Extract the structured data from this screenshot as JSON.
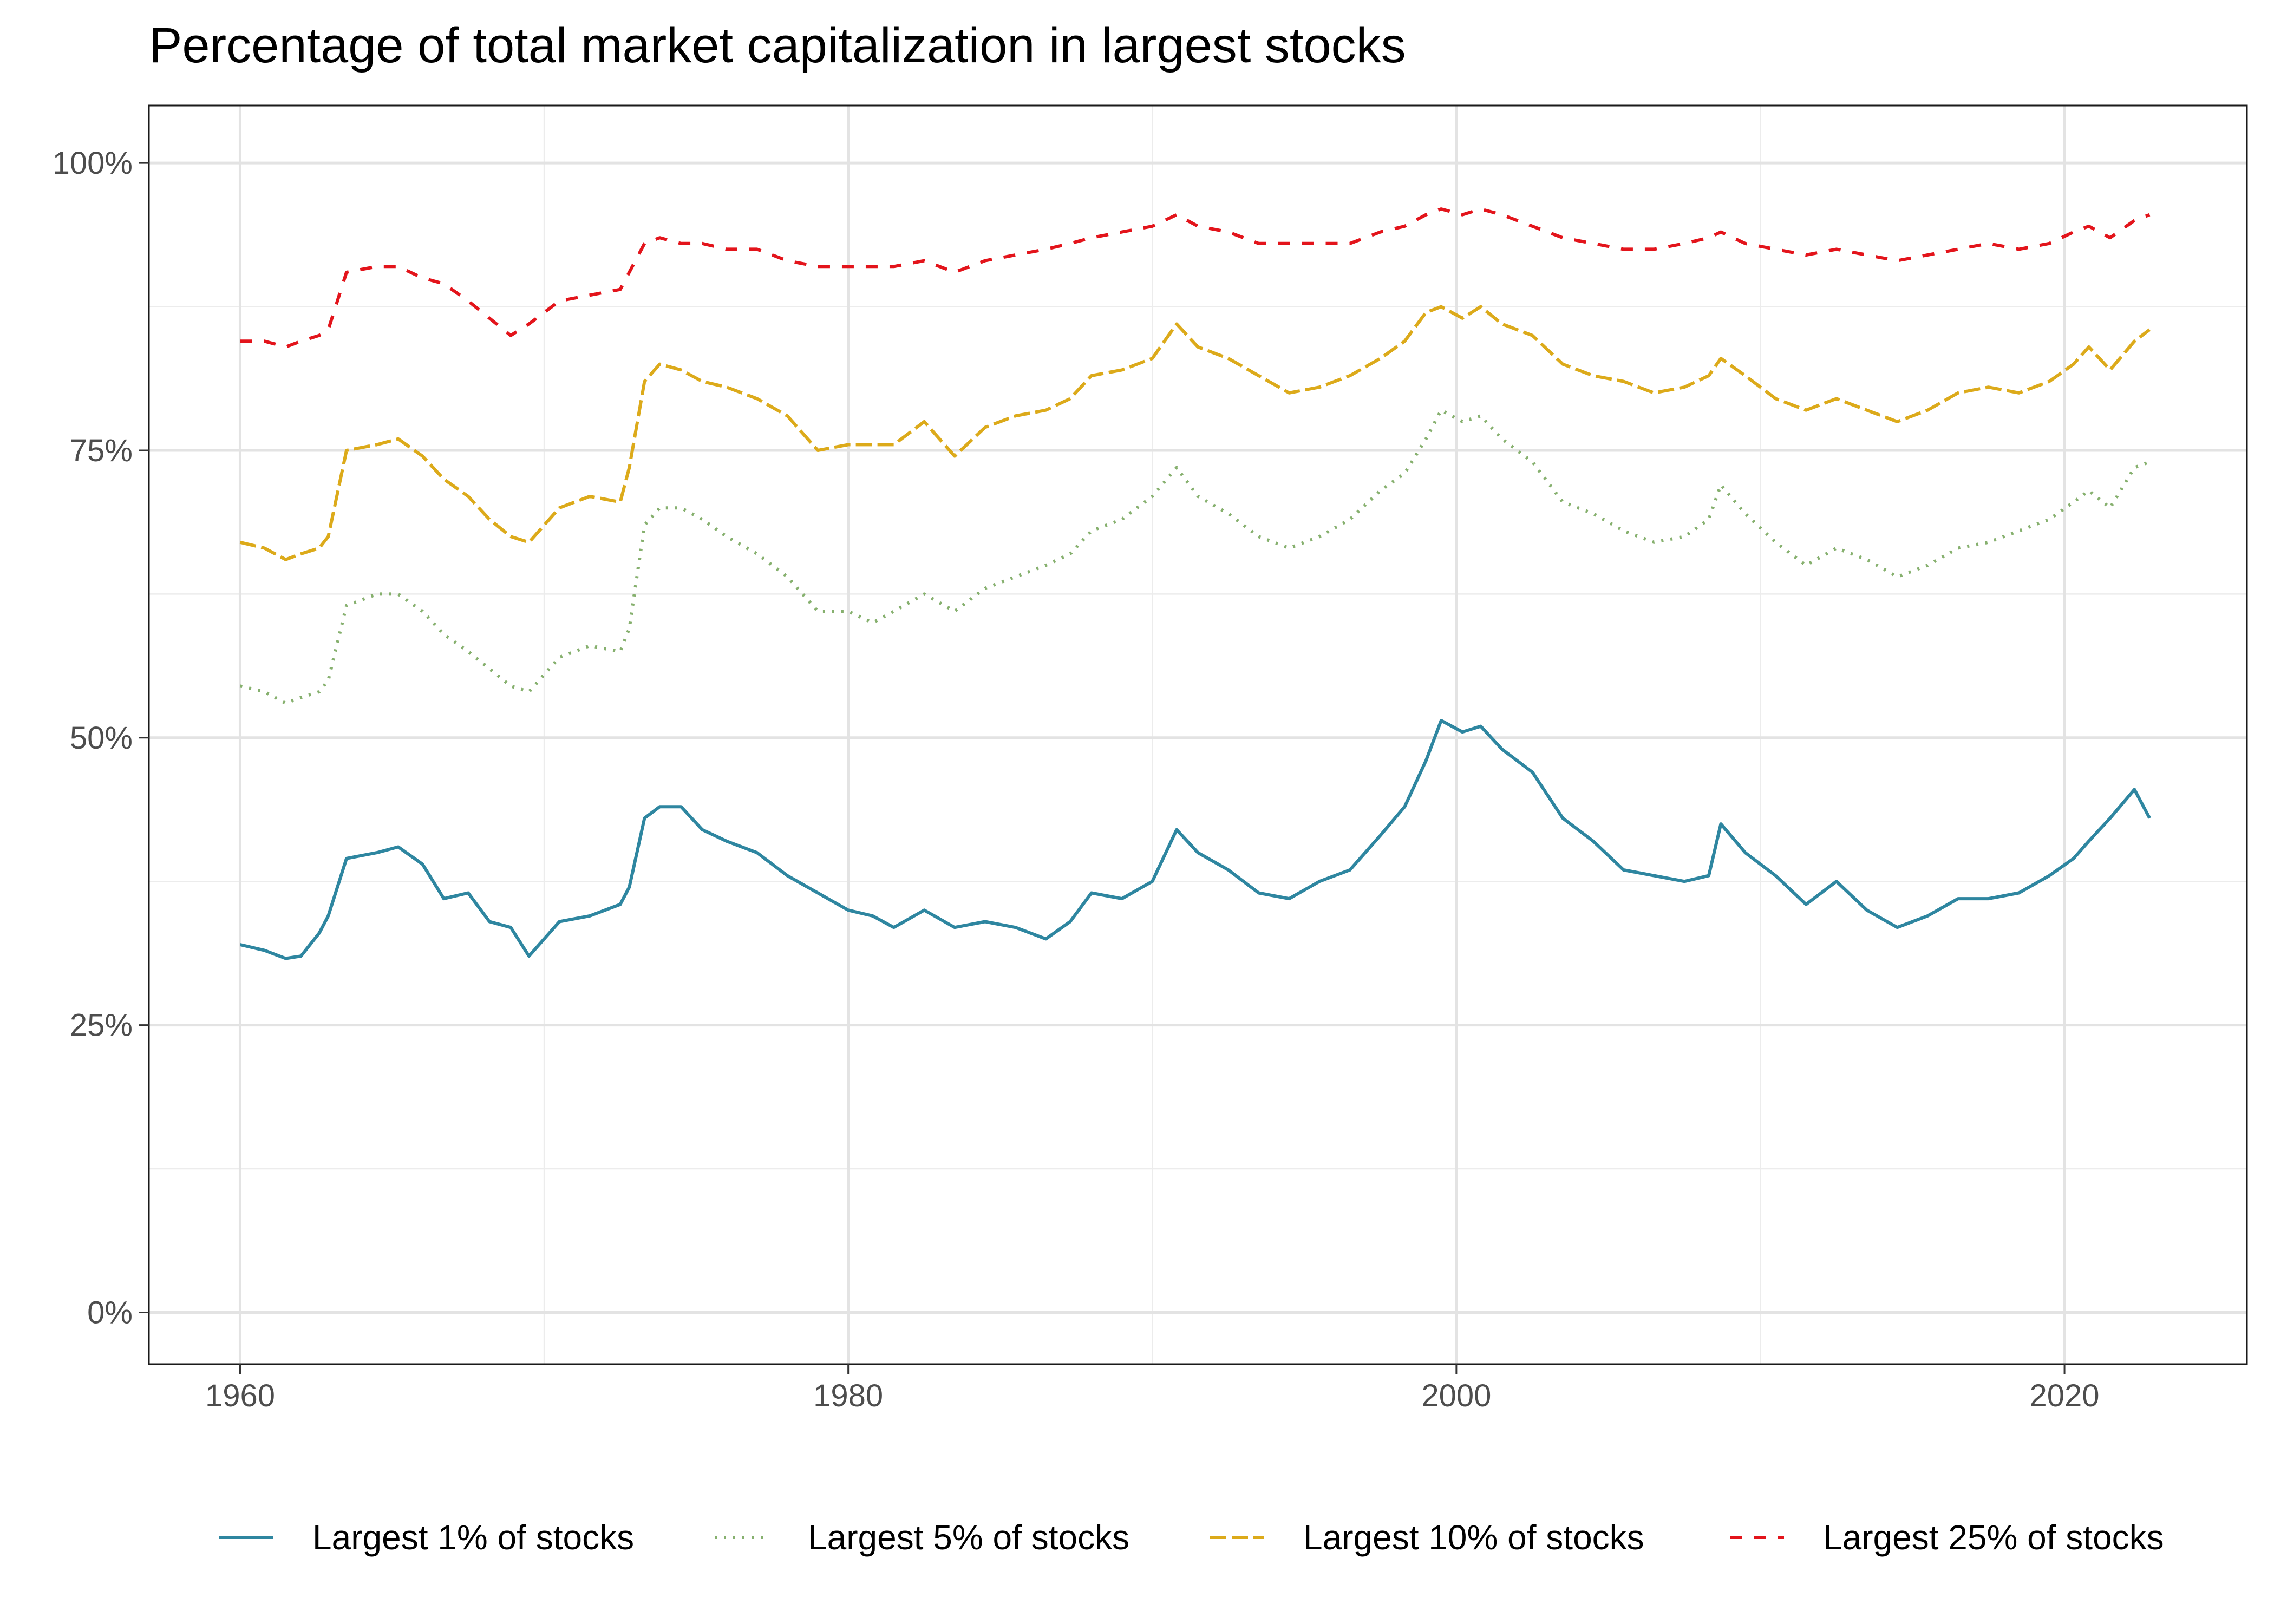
{
  "chart_data": {
    "type": "line",
    "title": "Percentage of total market capitalization in largest stocks",
    "xlabel": "",
    "ylabel": "",
    "xlim": [
      1957,
      2026
    ],
    "ylim": [
      -4.5,
      105
    ],
    "x_ticks": [
      1960,
      1980,
      2000,
      2020
    ],
    "x_tick_labels": [
      "1960",
      "1980",
      "2000",
      "2020"
    ],
    "y_ticks": [
      0,
      25,
      50,
      75,
      100
    ],
    "y_tick_labels": [
      "0%",
      "25%",
      "50%",
      "75%",
      "100%"
    ],
    "grid": true,
    "legend_position": "bottom",
    "colors": {
      "largest_1": "#2e86a0",
      "largest_5": "#86b06e",
      "largest_10": "#dcaa1a",
      "largest_25": "#e3141b"
    },
    "series": [
      {
        "name": "Largest 1% of stocks",
        "color": "#2e86a0",
        "dash": "solid",
        "x": [
          1960,
          1960.8,
          1961.5,
          1962,
          1962.6,
          1962.9,
          1963.5,
          1964.5,
          1965.2,
          1966,
          1966.7,
          1967.5,
          1968.2,
          1968.9,
          1969.5,
          1970.5,
          1971.5,
          1972.5,
          1972.8,
          1973.3,
          1973.8,
          1974.5,
          1975.2,
          1976,
          1977,
          1978,
          1979,
          1980,
          1980.8,
          1981.5,
          1982.5,
          1983.5,
          1984.5,
          1985.5,
          1986.5,
          1987.3,
          1988,
          1989,
          1990,
          1990.8,
          1991.5,
          1992.5,
          1993.5,
          1994.5,
          1995.5,
          1996.5,
          1997.5,
          1998.3,
          1999,
          1999.5,
          2000.2,
          2000.8,
          2001.5,
          2002.5,
          2003.5,
          2004.5,
          2005.5,
          2006.5,
          2007.5,
          2008.3,
          2008.7,
          2009.5,
          2010.5,
          2011.5,
          2012.5,
          2013.5,
          2014.5,
          2015.5,
          2016.5,
          2017.5,
          2018.5,
          2019.5,
          2020.3,
          2020.8,
          2021.5,
          2022.3,
          2022.8
        ],
        "values": [
          32,
          31.5,
          30.8,
          31,
          33,
          34.5,
          39.5,
          40,
          40.5,
          39,
          36,
          36.5,
          34,
          33.5,
          31,
          34,
          34.5,
          35.5,
          37,
          43,
          44,
          44,
          42,
          41,
          40,
          38,
          36.5,
          35,
          34.5,
          33.5,
          35,
          33.5,
          34,
          33.5,
          32.5,
          34,
          36.5,
          36,
          37.5,
          42,
          40,
          38.5,
          36.5,
          36,
          37.5,
          38.5,
          41.5,
          44,
          48,
          51.5,
          50.5,
          51,
          49,
          47,
          43,
          41,
          38.5,
          38,
          37.5,
          38,
          42.5,
          40,
          38,
          35.5,
          37.5,
          35,
          33.5,
          34.5,
          36,
          36,
          36.5,
          38,
          39.5,
          41,
          43,
          45.5,
          43
        ]
      },
      {
        "name": "Largest 5% of stocks",
        "color": "#86b06e",
        "dash": "dotted",
        "x": [
          1960,
          1960.8,
          1961.5,
          1962,
          1962.6,
          1962.9,
          1963.5,
          1964.5,
          1965.2,
          1966,
          1966.7,
          1967.5,
          1968.2,
          1968.9,
          1969.5,
          1970.5,
          1971.5,
          1972.5,
          1972.8,
          1973.3,
          1973.8,
          1974.5,
          1975.2,
          1976,
          1977,
          1978,
          1979,
          1980,
          1980.8,
          1981.5,
          1982.5,
          1983.5,
          1984.5,
          1985.5,
          1986.5,
          1987.3,
          1988,
          1989,
          1990,
          1990.8,
          1991.5,
          1992.5,
          1993.5,
          1994.5,
          1995.5,
          1996.5,
          1997.5,
          1998.3,
          1999,
          1999.5,
          2000.2,
          2000.8,
          2001.5,
          2002.5,
          2003.5,
          2004.5,
          2005.5,
          2006.5,
          2007.5,
          2008.3,
          2008.7,
          2009.5,
          2010.5,
          2011.5,
          2012.5,
          2013.5,
          2014.5,
          2015.5,
          2016.5,
          2017.5,
          2018.5,
          2019.5,
          2020.3,
          2020.8,
          2021.5,
          2022.3,
          2022.8
        ],
        "values": [
          54.5,
          54,
          53,
          53.5,
          54,
          55,
          61.5,
          62.5,
          62.5,
          61,
          59,
          57.5,
          56,
          54.5,
          54,
          57,
          58,
          57.5,
          59.5,
          68.5,
          70,
          70,
          69,
          67.5,
          66,
          64,
          61,
          61,
          60,
          61,
          62.5,
          61,
          63,
          64,
          65,
          66,
          68,
          69,
          71,
          73.5,
          71,
          69.5,
          67.5,
          66.5,
          67.5,
          69,
          71.5,
          73,
          76,
          78.5,
          77.5,
          78,
          76,
          74,
          70.5,
          69.5,
          68,
          67,
          67.5,
          69,
          72,
          69.5,
          67,
          65,
          66.5,
          65.5,
          64,
          65,
          66.5,
          67,
          68,
          69,
          70.5,
          71.5,
          70,
          73.5,
          74
        ]
      },
      {
        "name": "Largest 10% of stocks",
        "color": "#dcaa1a",
        "dash": "longdash",
        "x": [
          1960,
          1960.8,
          1961.5,
          1962,
          1962.6,
          1962.9,
          1963.5,
          1964.5,
          1965.2,
          1966,
          1966.7,
          1967.5,
          1968.2,
          1968.9,
          1969.5,
          1970.5,
          1971.5,
          1972.5,
          1972.8,
          1973.3,
          1973.8,
          1974.5,
          1975.2,
          1976,
          1977,
          1978,
          1979,
          1980,
          1980.8,
          1981.5,
          1982.5,
          1983.5,
          1984.5,
          1985.5,
          1986.5,
          1987.3,
          1988,
          1989,
          1990,
          1990.8,
          1991.5,
          1992.5,
          1993.5,
          1994.5,
          1995.5,
          1996.5,
          1997.5,
          1998.3,
          1999,
          1999.5,
          2000.2,
          2000.8,
          2001.5,
          2002.5,
          2003.5,
          2004.5,
          2005.5,
          2006.5,
          2007.5,
          2008.3,
          2008.7,
          2009.5,
          2010.5,
          2011.5,
          2012.5,
          2013.5,
          2014.5,
          2015.5,
          2016.5,
          2017.5,
          2018.5,
          2019.5,
          2020.3,
          2020.8,
          2021.5,
          2022.3,
          2022.8
        ],
        "values": [
          67,
          66.5,
          65.5,
          66,
          66.5,
          67.5,
          75,
          75.5,
          76,
          74.5,
          72.5,
          71,
          69,
          67.5,
          67,
          70,
          71,
          70.5,
          73.5,
          81,
          82.5,
          82,
          81,
          80.5,
          79.5,
          78,
          75,
          75.5,
          75.5,
          75.5,
          77.5,
          74.5,
          77,
          78,
          78.5,
          79.5,
          81.5,
          82,
          83,
          86,
          84,
          83,
          81.5,
          80,
          80.5,
          81.5,
          83,
          84.5,
          87,
          87.5,
          86.5,
          87.5,
          86,
          85,
          82.5,
          81.5,
          81,
          80,
          80.5,
          81.5,
          83,
          81.5,
          79.5,
          78.5,
          79.5,
          78.5,
          77.5,
          78.5,
          80,
          80.5,
          80,
          81,
          82.5,
          84,
          82,
          84.5,
          85.5
        ]
      },
      {
        "name": "Largest 25% of stocks",
        "color": "#e3141b",
        "dash": "dashed",
        "x": [
          1960,
          1960.8,
          1961.5,
          1962,
          1962.6,
          1962.9,
          1963.5,
          1964.5,
          1965.2,
          1966,
          1966.7,
          1967.5,
          1968.2,
          1968.9,
          1969.5,
          1970.5,
          1971.5,
          1972.5,
          1972.8,
          1973.3,
          1973.8,
          1974.5,
          1975.2,
          1976,
          1977,
          1978,
          1979,
          1980,
          1980.8,
          1981.5,
          1982.5,
          1983.5,
          1984.5,
          1985.5,
          1986.5,
          1987.3,
          1988,
          1989,
          1990,
          1990.8,
          1991.5,
          1992.5,
          1993.5,
          1994.5,
          1995.5,
          1996.5,
          1997.5,
          1998.3,
          1999,
          1999.5,
          2000.2,
          2000.8,
          2001.5,
          2002.5,
          2003.5,
          2004.5,
          2005.5,
          2006.5,
          2007.5,
          2008.3,
          2008.7,
          2009.5,
          2010.5,
          2011.5,
          2012.5,
          2013.5,
          2014.5,
          2015.5,
          2016.5,
          2017.5,
          2018.5,
          2019.5,
          2020.3,
          2020.8,
          2021.5,
          2022.3,
          2022.8
        ],
        "values": [
          84.5,
          84.5,
          84,
          84.5,
          85,
          85.5,
          90.5,
          91,
          91,
          90,
          89.5,
          88,
          86.5,
          85,
          86,
          88,
          88.5,
          89,
          90.5,
          93,
          93.5,
          93,
          93,
          92.5,
          92.5,
          91.5,
          91,
          91,
          91,
          91,
          91.5,
          90.5,
          91.5,
          92,
          92.5,
          93,
          93.5,
          94,
          94.5,
          95.5,
          94.5,
          94,
          93,
          93,
          93,
          93,
          94,
          94.5,
          95.5,
          96,
          95.5,
          96,
          95.5,
          94.5,
          93.5,
          93,
          92.5,
          92.5,
          93,
          93.5,
          94,
          93,
          92.5,
          92,
          92.5,
          92,
          91.5,
          92,
          92.5,
          93,
          92.5,
          93,
          94,
          94.5,
          93.5,
          95,
          95.5
        ]
      }
    ]
  }
}
